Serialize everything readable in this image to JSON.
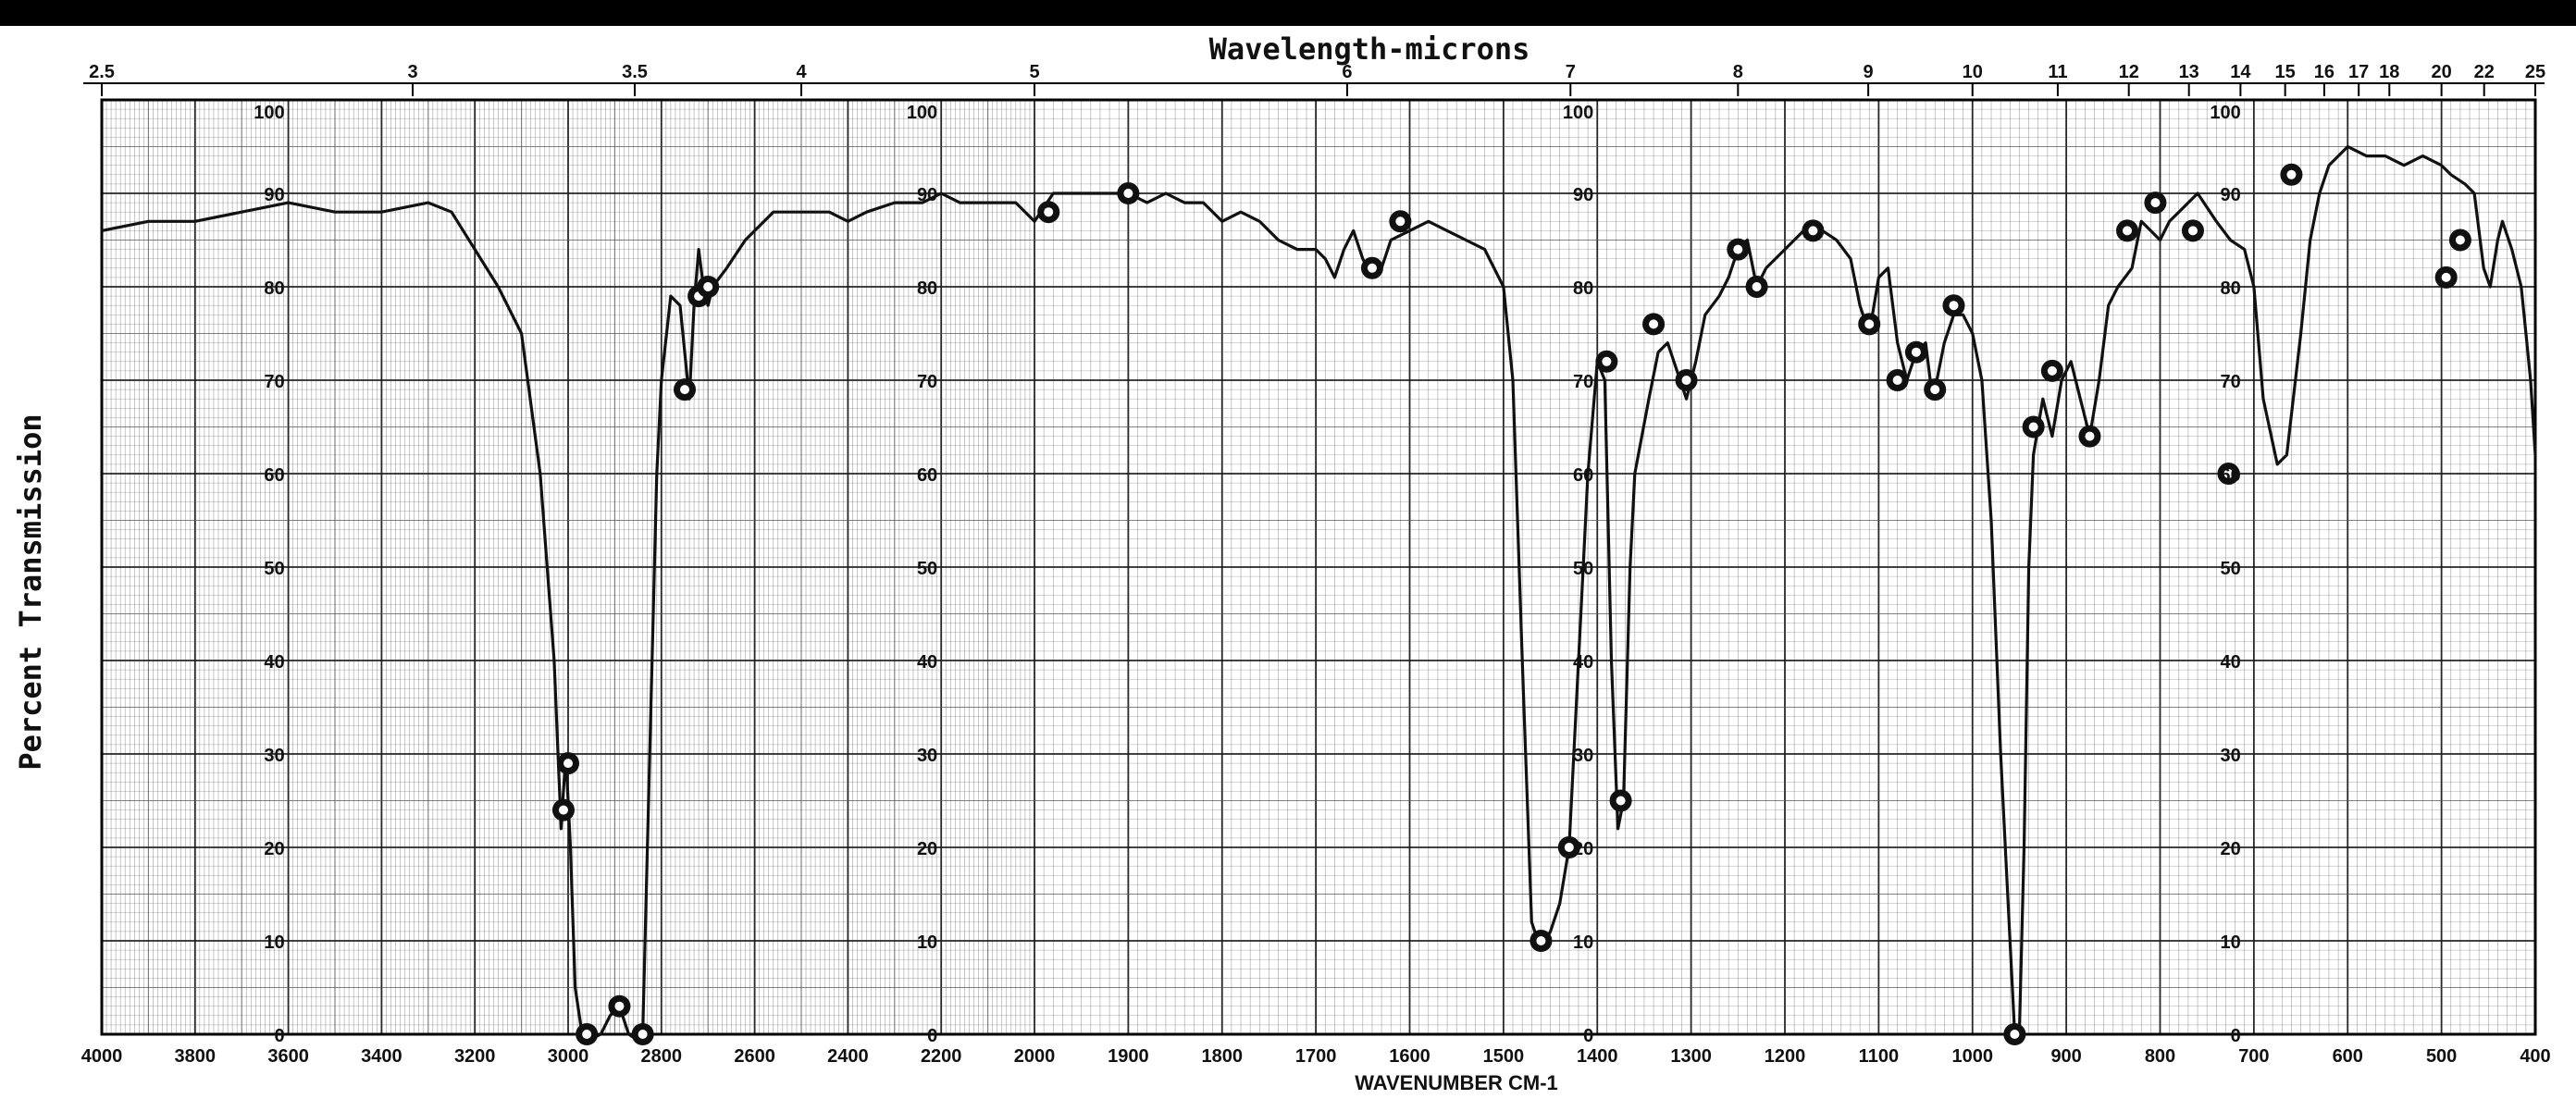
{
  "chart_data": {
    "type": "line",
    "title": "",
    "top_axis_label": "Wavelength-microns",
    "xlabel": "WAVENUMBER CM-1",
    "ylabel": "Percent Transmission",
    "xlim_segments": [
      {
        "from": 4000,
        "to": 2000
      },
      {
        "from": 2000,
        "to": 400
      }
    ],
    "ylim": [
      0,
      100
    ],
    "grid": true,
    "bottom_ticks": [
      "4000",
      "3800",
      "3600",
      "3400",
      "3200",
      "3000",
      "2800",
      "2600",
      "2400",
      "2200",
      "2000",
      "1900",
      "1800",
      "1700",
      "1600",
      "1500",
      "1400",
      "1300",
      "1200",
      "1100",
      "1000",
      "900",
      "800",
      "700",
      "600",
      "500",
      "400"
    ],
    "bottom_tick_values": [
      4000,
      3800,
      3600,
      3400,
      3200,
      3000,
      2800,
      2600,
      2400,
      2200,
      2000,
      1900,
      1800,
      1700,
      1600,
      1500,
      1400,
      1300,
      1200,
      1100,
      1000,
      900,
      800,
      700,
      600,
      500,
      400
    ],
    "top_ticks": [
      "2.5",
      "3",
      "3.5",
      "4",
      "5",
      "6",
      "7",
      "8",
      "9",
      "10",
      "11",
      "12",
      "13",
      "14",
      "15",
      "16",
      "17",
      "18",
      "20",
      "22",
      "25"
    ],
    "top_tick_values": [
      2.5,
      3,
      3.5,
      4,
      5,
      6,
      7,
      8,
      9,
      10,
      11,
      12,
      13,
      14,
      15,
      16,
      17,
      18,
      20,
      22,
      25
    ],
    "y_ticks": [
      "0",
      "10",
      "20",
      "30",
      "40",
      "50",
      "60",
      "70",
      "80",
      "90",
      "100"
    ],
    "y_tick_values": [
      0,
      10,
      20,
      30,
      40,
      50,
      60,
      70,
      80,
      90,
      100
    ],
    "y_tick_wavenumbers": [
      3600,
      2200,
      1400,
      710
    ],
    "series": [
      {
        "name": "",
        "points": [
          [
            4000,
            86
          ],
          [
            3900,
            87
          ],
          [
            3800,
            87
          ],
          [
            3700,
            88
          ],
          [
            3600,
            89
          ],
          [
            3500,
            88
          ],
          [
            3400,
            88
          ],
          [
            3300,
            89
          ],
          [
            3250,
            88
          ],
          [
            3200,
            84
          ],
          [
            3150,
            80
          ],
          [
            3100,
            75
          ],
          [
            3060,
            60
          ],
          [
            3030,
            40
          ],
          [
            3015,
            22
          ],
          [
            3005,
            30
          ],
          [
            2995,
            20
          ],
          [
            2985,
            5
          ],
          [
            2970,
            0
          ],
          [
            2950,
            -0.5
          ],
          [
            2930,
            0
          ],
          [
            2910,
            2
          ],
          [
            2890,
            3
          ],
          [
            2870,
            0
          ],
          [
            2855,
            -0.5
          ],
          [
            2840,
            0
          ],
          [
            2825,
            30
          ],
          [
            2810,
            60
          ],
          [
            2800,
            70
          ],
          [
            2780,
            79
          ],
          [
            2760,
            78
          ],
          [
            2750,
            73
          ],
          [
            2740,
            68
          ],
          [
            2730,
            78
          ],
          [
            2720,
            84
          ],
          [
            2710,
            80
          ],
          [
            2700,
            78
          ],
          [
            2690,
            80
          ],
          [
            2660,
            82
          ],
          [
            2620,
            85
          ],
          [
            2560,
            88
          ],
          [
            2500,
            88
          ],
          [
            2440,
            88
          ],
          [
            2400,
            87
          ],
          [
            2360,
            88
          ],
          [
            2300,
            89
          ],
          [
            2240,
            89
          ],
          [
            2200,
            90
          ],
          [
            2160,
            89
          ],
          [
            2100,
            89
          ],
          [
            2040,
            89
          ],
          [
            2000,
            87
          ],
          [
            1980,
            90
          ],
          [
            1950,
            90
          ],
          [
            1920,
            90
          ],
          [
            1900,
            90
          ],
          [
            1880,
            89
          ],
          [
            1860,
            90
          ],
          [
            1840,
            89
          ],
          [
            1820,
            89
          ],
          [
            1800,
            87
          ],
          [
            1780,
            88
          ],
          [
            1760,
            87
          ],
          [
            1740,
            85
          ],
          [
            1720,
            84
          ],
          [
            1700,
            84
          ],
          [
            1690,
            83
          ],
          [
            1680,
            81
          ],
          [
            1670,
            84
          ],
          [
            1660,
            86
          ],
          [
            1650,
            83
          ],
          [
            1640,
            81
          ],
          [
            1630,
            82
          ],
          [
            1620,
            85
          ],
          [
            1600,
            86
          ],
          [
            1580,
            87
          ],
          [
            1560,
            86
          ],
          [
            1540,
            85
          ],
          [
            1520,
            84
          ],
          [
            1510,
            82
          ],
          [
            1500,
            80
          ],
          [
            1490,
            70
          ],
          [
            1480,
            40
          ],
          [
            1470,
            12
          ],
          [
            1460,
            9
          ],
          [
            1450,
            11
          ],
          [
            1440,
            14
          ],
          [
            1430,
            20
          ],
          [
            1420,
            40
          ],
          [
            1410,
            60
          ],
          [
            1400,
            72
          ],
          [
            1392,
            70
          ],
          [
            1385,
            40
          ],
          [
            1378,
            22
          ],
          [
            1372,
            25
          ],
          [
            1365,
            50
          ],
          [
            1360,
            60
          ],
          [
            1345,
            68
          ],
          [
            1335,
            73
          ],
          [
            1325,
            74
          ],
          [
            1315,
            71
          ],
          [
            1305,
            68
          ],
          [
            1295,
            72
          ],
          [
            1285,
            77
          ],
          [
            1270,
            79
          ],
          [
            1260,
            81
          ],
          [
            1250,
            84
          ],
          [
            1240,
            85
          ],
          [
            1230,
            80
          ],
          [
            1220,
            82
          ],
          [
            1200,
            84
          ],
          [
            1180,
            86
          ],
          [
            1170,
            87
          ],
          [
            1160,
            86
          ],
          [
            1145,
            85
          ],
          [
            1130,
            83
          ],
          [
            1120,
            78
          ],
          [
            1110,
            75
          ],
          [
            1100,
            81
          ],
          [
            1090,
            82
          ],
          [
            1080,
            74
          ],
          [
            1070,
            70
          ],
          [
            1060,
            73
          ],
          [
            1050,
            74
          ],
          [
            1045,
            70
          ],
          [
            1040,
            69
          ],
          [
            1030,
            74
          ],
          [
            1020,
            77
          ],
          [
            1010,
            77
          ],
          [
            1000,
            75
          ],
          [
            990,
            70
          ],
          [
            980,
            55
          ],
          [
            970,
            30
          ],
          [
            960,
            10
          ],
          [
            955,
            0
          ],
          [
            950,
            0
          ],
          [
            945,
            20
          ],
          [
            940,
            50
          ],
          [
            935,
            62
          ],
          [
            925,
            68
          ],
          [
            915,
            64
          ],
          [
            905,
            70
          ],
          [
            895,
            72
          ],
          [
            885,
            68
          ],
          [
            875,
            64
          ],
          [
            865,
            70
          ],
          [
            855,
            78
          ],
          [
            845,
            80
          ],
          [
            830,
            82
          ],
          [
            820,
            87
          ],
          [
            810,
            86
          ],
          [
            800,
            85
          ],
          [
            790,
            87
          ],
          [
            780,
            88
          ],
          [
            760,
            90
          ],
          [
            740,
            87
          ],
          [
            725,
            85
          ],
          [
            710,
            84
          ],
          [
            700,
            80
          ],
          [
            690,
            68
          ],
          [
            675,
            61
          ],
          [
            665,
            62
          ],
          [
            650,
            75
          ],
          [
            640,
            85
          ],
          [
            630,
            90
          ],
          [
            620,
            93
          ],
          [
            600,
            95
          ],
          [
            580,
            94
          ],
          [
            560,
            94
          ],
          [
            540,
            93
          ],
          [
            520,
            94
          ],
          [
            500,
            93
          ],
          [
            490,
            92
          ],
          [
            475,
            91
          ],
          [
            465,
            90
          ],
          [
            455,
            82
          ],
          [
            448,
            80
          ],
          [
            440,
            85
          ],
          [
            435,
            87
          ],
          [
            425,
            84
          ],
          [
            415,
            80
          ],
          [
            410,
            75
          ],
          [
            405,
            70
          ],
          [
            400,
            62
          ]
        ]
      }
    ],
    "annotations": {
      "circled_points": [
        [
          3010,
          24
        ],
        [
          3000,
          29
        ],
        [
          2960,
          0
        ],
        [
          2890,
          3
        ],
        [
          2840,
          0
        ],
        [
          2750,
          69
        ],
        [
          2720,
          79
        ],
        [
          2700,
          80
        ],
        [
          1640,
          82
        ],
        [
          1610,
          87
        ],
        [
          1985,
          88
        ],
        [
          1900,
          90
        ],
        [
          1460,
          10
        ],
        [
          1430,
          20
        ],
        [
          1390,
          72
        ],
        [
          1375,
          25
        ],
        [
          1340,
          76
        ],
        [
          1305,
          70
        ],
        [
          1250,
          84
        ],
        [
          1230,
          80
        ],
        [
          1170,
          86
        ],
        [
          1110,
          76
        ],
        [
          1080,
          70
        ],
        [
          1060,
          73
        ],
        [
          1040,
          69
        ],
        [
          1020,
          78
        ],
        [
          955,
          0
        ],
        [
          935,
          65
        ],
        [
          915,
          71
        ],
        [
          875,
          64
        ],
        [
          835,
          86
        ],
        [
          805,
          89
        ],
        [
          765,
          86
        ],
        [
          727,
          60
        ],
        [
          660,
          92
        ],
        [
          495,
          81
        ],
        [
          480,
          85
        ]
      ]
    }
  },
  "colors": {
    "background": "#ffffff",
    "ink": "#111111",
    "grid_dark": "#1a1a1a",
    "grid_light": "#555555",
    "frame": "#000000"
  }
}
